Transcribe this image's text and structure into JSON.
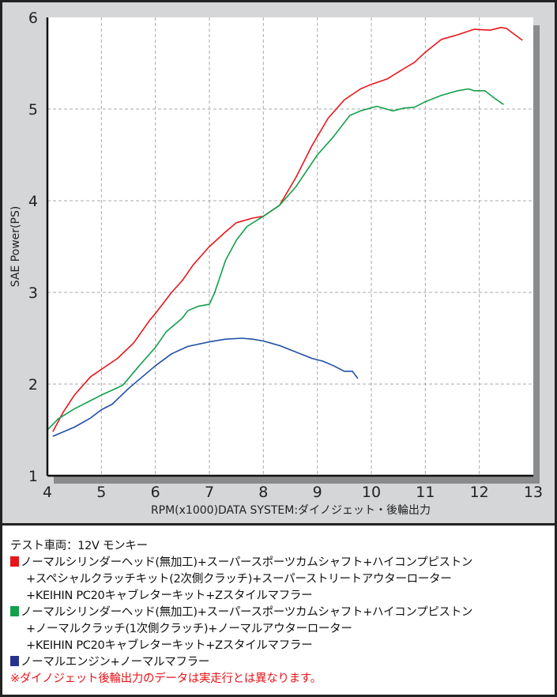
{
  "chart_data": {
    "type": "line",
    "title": "",
    "xlabel": "RPM(x1000)DATA SYSTEM:ダイノジェット・後輪出力",
    "ylabel": "SAE Power(PS)",
    "xlim": [
      4,
      13
    ],
    "ylim": [
      1,
      6
    ],
    "xticks": [
      "4",
      "5",
      "6",
      "7",
      "8",
      "9",
      "10",
      "11",
      "12",
      "13"
    ],
    "yticks": [
      "1",
      "2",
      "3",
      "4",
      "5",
      "6"
    ],
    "grid": true,
    "series": [
      {
        "name": "red",
        "color": "#e8151b",
        "points": [
          [
            4.1,
            1.48
          ],
          [
            4.3,
            1.7
          ],
          [
            4.5,
            1.88
          ],
          [
            4.8,
            2.08
          ],
          [
            5.0,
            2.16
          ],
          [
            5.3,
            2.28
          ],
          [
            5.6,
            2.45
          ],
          [
            5.9,
            2.7
          ],
          [
            6.0,
            2.77
          ],
          [
            6.3,
            3.0
          ],
          [
            6.5,
            3.13
          ],
          [
            6.7,
            3.3
          ],
          [
            7.0,
            3.5
          ],
          [
            7.3,
            3.66
          ],
          [
            7.5,
            3.76
          ],
          [
            7.8,
            3.81
          ],
          [
            8.0,
            3.83
          ],
          [
            8.3,
            3.95
          ],
          [
            8.6,
            4.25
          ],
          [
            8.9,
            4.6
          ],
          [
            9.2,
            4.9
          ],
          [
            9.5,
            5.1
          ],
          [
            9.8,
            5.22
          ],
          [
            10.0,
            5.27
          ],
          [
            10.3,
            5.33
          ],
          [
            10.6,
            5.44
          ],
          [
            10.8,
            5.51
          ],
          [
            11.0,
            5.62
          ],
          [
            11.3,
            5.76
          ],
          [
            11.6,
            5.81
          ],
          [
            11.9,
            5.87
          ],
          [
            12.2,
            5.86
          ],
          [
            12.4,
            5.89
          ],
          [
            12.5,
            5.88
          ],
          [
            12.8,
            5.75
          ]
        ]
      },
      {
        "name": "green",
        "color": "#13a04a",
        "points": [
          [
            4.0,
            1.5
          ],
          [
            4.2,
            1.62
          ],
          [
            4.5,
            1.73
          ],
          [
            4.8,
            1.82
          ],
          [
            5.0,
            1.88
          ],
          [
            5.3,
            1.96
          ],
          [
            5.4,
            1.99
          ],
          [
            5.7,
            2.2
          ],
          [
            6.0,
            2.4
          ],
          [
            6.2,
            2.57
          ],
          [
            6.5,
            2.72
          ],
          [
            6.6,
            2.8
          ],
          [
            6.8,
            2.85
          ],
          [
            7.0,
            2.87
          ],
          [
            7.1,
            3.0
          ],
          [
            7.3,
            3.35
          ],
          [
            7.5,
            3.57
          ],
          [
            7.7,
            3.72
          ],
          [
            8.0,
            3.83
          ],
          [
            8.3,
            3.95
          ],
          [
            8.6,
            4.15
          ],
          [
            9.0,
            4.5
          ],
          [
            9.3,
            4.7
          ],
          [
            9.6,
            4.93
          ],
          [
            9.8,
            4.98
          ],
          [
            10.1,
            5.03
          ],
          [
            10.4,
            4.98
          ],
          [
            10.6,
            5.01
          ],
          [
            10.8,
            5.02
          ],
          [
            11.0,
            5.08
          ],
          [
            11.3,
            5.15
          ],
          [
            11.6,
            5.2
          ],
          [
            11.8,
            5.22
          ],
          [
            11.9,
            5.2
          ],
          [
            12.1,
            5.2
          ],
          [
            12.3,
            5.11
          ],
          [
            12.45,
            5.05
          ]
        ]
      },
      {
        "name": "blue",
        "color": "#1f4fa3",
        "points": [
          [
            4.1,
            1.43
          ],
          [
            4.5,
            1.53
          ],
          [
            4.8,
            1.63
          ],
          [
            5.0,
            1.72
          ],
          [
            5.2,
            1.78
          ],
          [
            5.5,
            1.95
          ],
          [
            6.0,
            2.2
          ],
          [
            6.3,
            2.33
          ],
          [
            6.6,
            2.41
          ],
          [
            7.0,
            2.46
          ],
          [
            7.3,
            2.49
          ],
          [
            7.6,
            2.5
          ],
          [
            7.8,
            2.49
          ],
          [
            8.0,
            2.47
          ],
          [
            8.3,
            2.42
          ],
          [
            8.6,
            2.35
          ],
          [
            8.9,
            2.28
          ],
          [
            9.1,
            2.25
          ],
          [
            9.3,
            2.2
          ],
          [
            9.5,
            2.14
          ],
          [
            9.65,
            2.14
          ],
          [
            9.75,
            2.06
          ]
        ]
      }
    ]
  },
  "legend": {
    "vehicle": "テスト車両：12V モンキー",
    "red_color": "#e8151b",
    "green_color": "#13a04a",
    "blue_color": "#26328f",
    "red_lines": [
      "ノーマルシリンダーヘッド(無加工)+スーパースポーツカムシャフト+ハイコンプピストン",
      "+スペシャルクラッチキット(2次側クラッチ)+スーパーストリートアウターローター",
      "+KEIHIN PC20キャブレターキット+Zスタイルマフラー"
    ],
    "green_lines": [
      "ノーマルシリンダーヘッド(無加工)+スーパースポーツカムシャフト+ハイコンプピストン",
      "+ノーマルクラッチ(1次側クラッチ)+ノーマルアウターローター",
      "+KEIHIN PC20キャブレターキット+Zスタイルマフラー"
    ],
    "blue_lines": [
      "ノーマルエンジン+ノーマルマフラー"
    ],
    "note": "※ダイノジェット後輪出力のデータは実走行とは異なります。"
  }
}
